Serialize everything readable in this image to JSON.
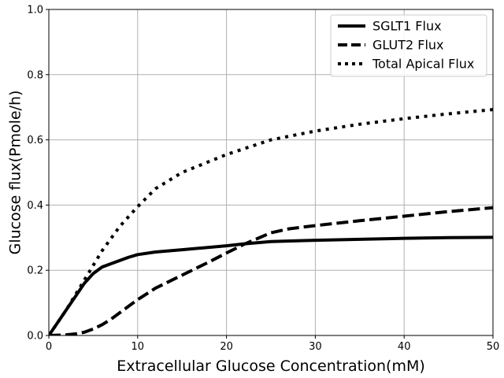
{
  "chart_data": {
    "type": "line",
    "title": "",
    "xlabel": "Extracellular Glucose Concentration(mM)",
    "ylabel": "Glucose flux(Pmole/h)",
    "xlim": [
      0,
      50
    ],
    "ylim": [
      0,
      1.0
    ],
    "xticks": [
      0,
      10,
      20,
      30,
      40,
      50
    ],
    "xtick_labels": [
      "0",
      "10",
      "20",
      "30",
      "40",
      "50"
    ],
    "yticks": [
      0,
      0.2,
      0.4,
      0.6,
      0.8,
      1.0
    ],
    "ytick_labels": [
      "0.0",
      "0.2",
      "0.4",
      "0.6",
      "0.8",
      "1.0"
    ],
    "grid": true,
    "legend_position": "top-right",
    "series": [
      {
        "name": "SGLT1 Flux",
        "style": "solid",
        "color": "#000000",
        "x": [
          0,
          1,
          2,
          3,
          4,
          5,
          6,
          7,
          8,
          9,
          10,
          12,
          15,
          20,
          22,
          25,
          30,
          35,
          40,
          45,
          50
        ],
        "y": [
          0,
          0.04,
          0.08,
          0.12,
          0.16,
          0.19,
          0.21,
          0.22,
          0.23,
          0.24,
          0.248,
          0.256,
          0.263,
          0.275,
          0.281,
          0.288,
          0.292,
          0.295,
          0.298,
          0.3,
          0.301
        ]
      },
      {
        "name": "GLUT2 Flux",
        "style": "dashed",
        "color": "#000000",
        "x": [
          0,
          2,
          3,
          4,
          5,
          6,
          7,
          8,
          10,
          12,
          15,
          18,
          20,
          22,
          25,
          27,
          30,
          35,
          40,
          45,
          50
        ],
        "y": [
          0,
          0.002,
          0.005,
          0.01,
          0.02,
          0.033,
          0.05,
          0.07,
          0.11,
          0.145,
          0.185,
          0.225,
          0.253,
          0.28,
          0.315,
          0.327,
          0.337,
          0.352,
          0.366,
          0.38,
          0.392
        ]
      },
      {
        "name": "Total Apical Flux",
        "style": "dotted",
        "color": "#000000",
        "x": [
          0,
          2,
          4,
          6,
          8,
          10,
          12,
          15,
          20,
          25,
          30,
          35,
          40,
          45,
          50
        ],
        "y": [
          0,
          0.08,
          0.17,
          0.26,
          0.335,
          0.395,
          0.45,
          0.5,
          0.555,
          0.6,
          0.627,
          0.648,
          0.665,
          0.68,
          0.693
        ]
      }
    ]
  }
}
